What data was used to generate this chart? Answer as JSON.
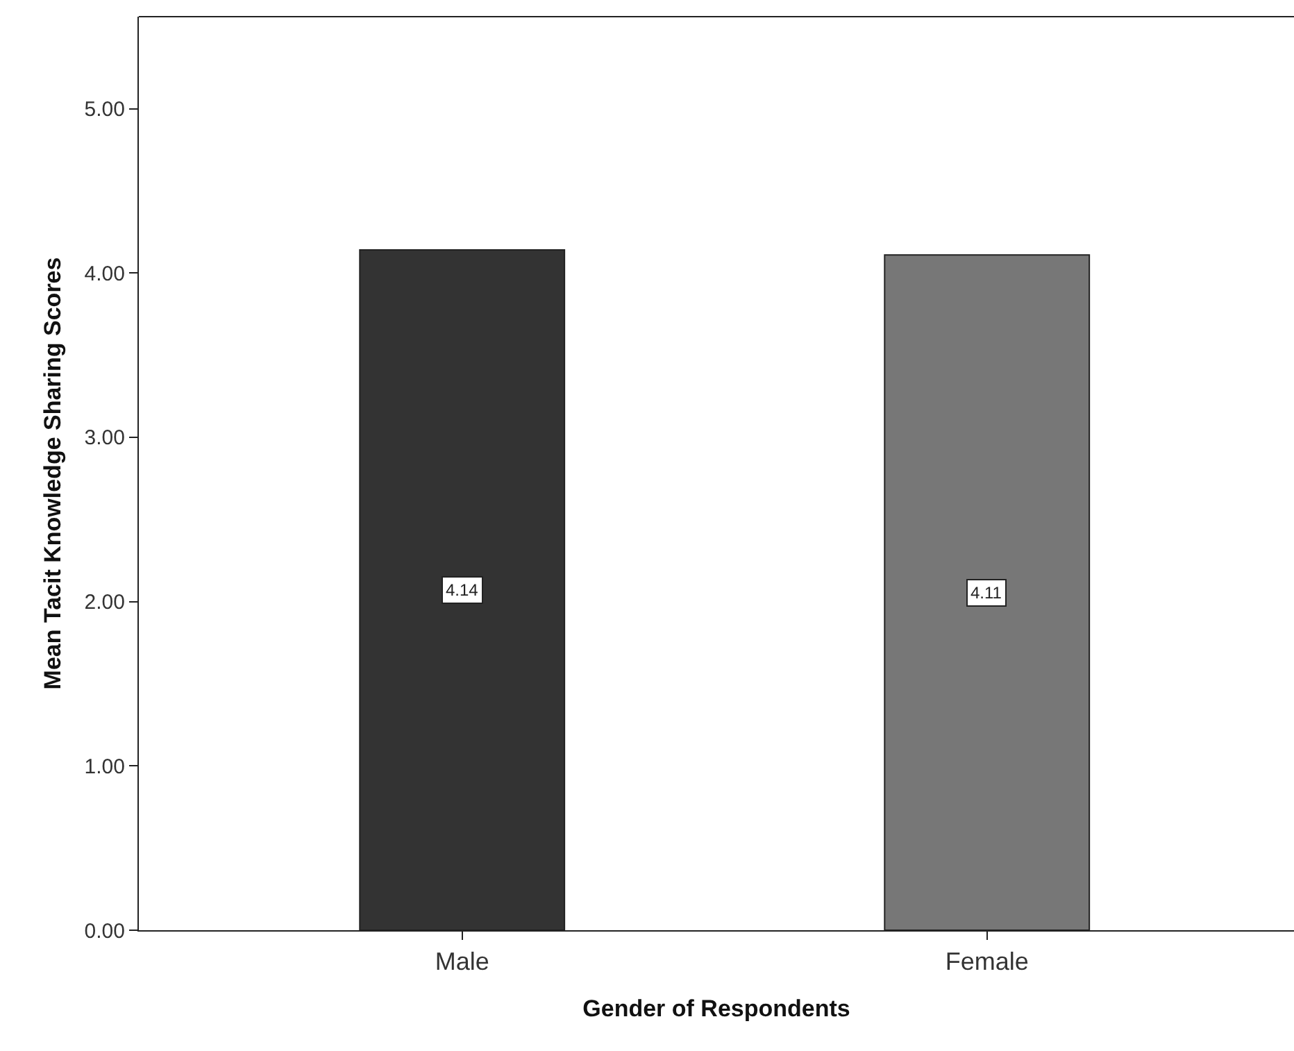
{
  "chart_data": {
    "type": "bar",
    "xlabel": "Gender of Respondents",
    "ylabel": "Mean Tacit Knowledge Sharing Scores",
    "categories": [
      "Male",
      "Female"
    ],
    "values": [
      4.14,
      4.11
    ],
    "colors": [
      "#333333",
      "#777777"
    ],
    "ylim": [
      0,
      5.56
    ],
    "yticks": [
      {
        "value": 0,
        "label": "0.00"
      },
      {
        "value": 1,
        "label": "1.00"
      },
      {
        "value": 2,
        "label": "2.00"
      },
      {
        "value": 3,
        "label": "3.00"
      },
      {
        "value": 4,
        "label": "4.00"
      },
      {
        "value": 5,
        "label": "5.00"
      }
    ],
    "data_labels": true,
    "grid": false
  }
}
